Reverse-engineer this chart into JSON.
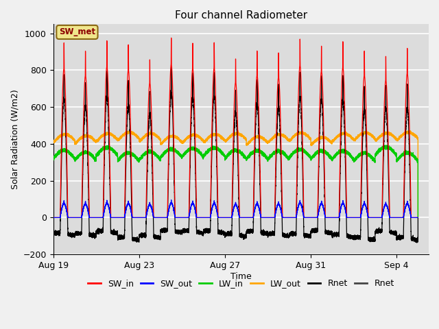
{
  "title": "Four channel Radiometer",
  "xlabel": "Time",
  "ylabel": "Solar Radiation (W/m2)",
  "ylim": [
    -200,
    1050
  ],
  "xlim_days": 17.5,
  "plot_bg": "#dcdcdc",
  "fig_bg": "#f0f0f0",
  "grid_color": "white",
  "x_ticks_labels": [
    "Aug 19",
    "Aug 23",
    "Aug 27",
    "Aug 31",
    "Sep 4"
  ],
  "x_ticks_positions": [
    0,
    4,
    8,
    12,
    16
  ],
  "legend_label": "SW_met",
  "sw_in_color": "#ff0000",
  "sw_out_color": "#0000ff",
  "lw_in_color": "#00cc00",
  "lw_out_color": "#ffa500",
  "rnet_color": "#000000",
  "rnet2_color": "#444444",
  "num_days": 17,
  "pts_per_day": 1000
}
